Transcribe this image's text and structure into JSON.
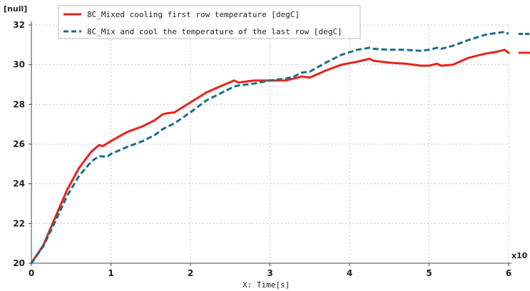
{
  "chart_data": {
    "type": "line",
    "y_unit_label": "[null]",
    "x_multiplier_label": "x10",
    "xlabel": "X: Time[s]",
    "xlim": [
      0,
      6
    ],
    "ylim": [
      20,
      32
    ],
    "x_ticks": [
      0,
      1,
      2,
      3,
      4,
      5,
      6
    ],
    "y_ticks": [
      20,
      22,
      24,
      26,
      28,
      30,
      32
    ],
    "grid": true,
    "legend_position": "top-left",
    "series": [
      {
        "name": "8C_Mixed cooling first row temperature [degC]",
        "color": "#e8231c",
        "style": "solid",
        "x": [
          0,
          0.15,
          0.3,
          0.45,
          0.6,
          0.75,
          0.85,
          0.9,
          1.0,
          1.2,
          1.4,
          1.55,
          1.65,
          1.7,
          1.8,
          2.0,
          2.2,
          2.4,
          2.55,
          2.6,
          2.8,
          3.0,
          3.2,
          3.3,
          3.4,
          3.5,
          3.7,
          3.9,
          4.1,
          4.25,
          4.3,
          4.5,
          4.7,
          4.9,
          5.0,
          5.1,
          5.15,
          5.3,
          5.5,
          5.7,
          5.85,
          5.95,
          6.0
        ],
        "y": [
          20.0,
          20.9,
          22.3,
          23.7,
          24.8,
          25.6,
          25.95,
          25.9,
          26.15,
          26.6,
          26.9,
          27.2,
          27.5,
          27.55,
          27.6,
          28.1,
          28.6,
          28.95,
          29.2,
          29.1,
          29.2,
          29.2,
          29.2,
          29.3,
          29.4,
          29.35,
          29.7,
          30.0,
          30.15,
          30.3,
          30.2,
          30.1,
          30.05,
          29.95,
          29.95,
          30.05,
          29.95,
          30.0,
          30.35,
          30.55,
          30.65,
          30.75,
          30.6
        ]
      },
      {
        "name": "8C_Mix and cool the temperature of the last row [degC]",
        "color": "#1c6e83",
        "style": "dashed",
        "x": [
          0,
          0.15,
          0.3,
          0.45,
          0.6,
          0.75,
          0.85,
          0.95,
          1.0,
          1.2,
          1.4,
          1.55,
          1.65,
          1.7,
          1.8,
          2.0,
          2.2,
          2.4,
          2.55,
          2.6,
          2.8,
          3.0,
          3.2,
          3.3,
          3.4,
          3.5,
          3.7,
          3.9,
          4.1,
          4.25,
          4.3,
          4.5,
          4.7,
          4.9,
          5.0,
          5.1,
          5.15,
          5.3,
          5.5,
          5.7,
          5.85,
          5.95,
          6.0
        ],
        "y": [
          20.0,
          20.85,
          22.1,
          23.4,
          24.4,
          25.1,
          25.4,
          25.35,
          25.5,
          25.85,
          26.15,
          26.45,
          26.75,
          26.85,
          27.05,
          27.6,
          28.2,
          28.6,
          28.9,
          28.95,
          29.05,
          29.2,
          29.3,
          29.4,
          29.6,
          29.65,
          30.1,
          30.5,
          30.75,
          30.85,
          30.8,
          30.75,
          30.75,
          30.7,
          30.75,
          30.85,
          30.8,
          30.95,
          31.25,
          31.5,
          31.6,
          31.65,
          31.55
        ]
      }
    ]
  }
}
